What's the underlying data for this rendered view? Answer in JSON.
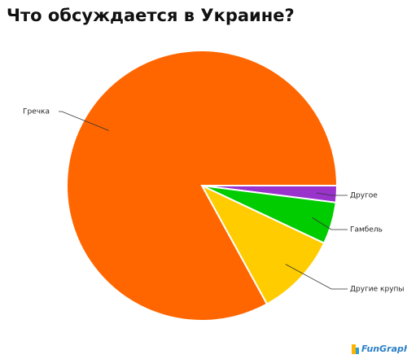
{
  "chart_data": {
    "type": "pie",
    "title": "Что обсуждается в Украине?",
    "categories": [
      "Другое",
      "Гамбель",
      "Другие крупы",
      "Гречка"
    ],
    "values": [
      2,
      5,
      10,
      83
    ],
    "colors": [
      "#9933cc",
      "#00cc00",
      "#ffcc00",
      "#ff6600"
    ],
    "footer": "FunGraph"
  }
}
